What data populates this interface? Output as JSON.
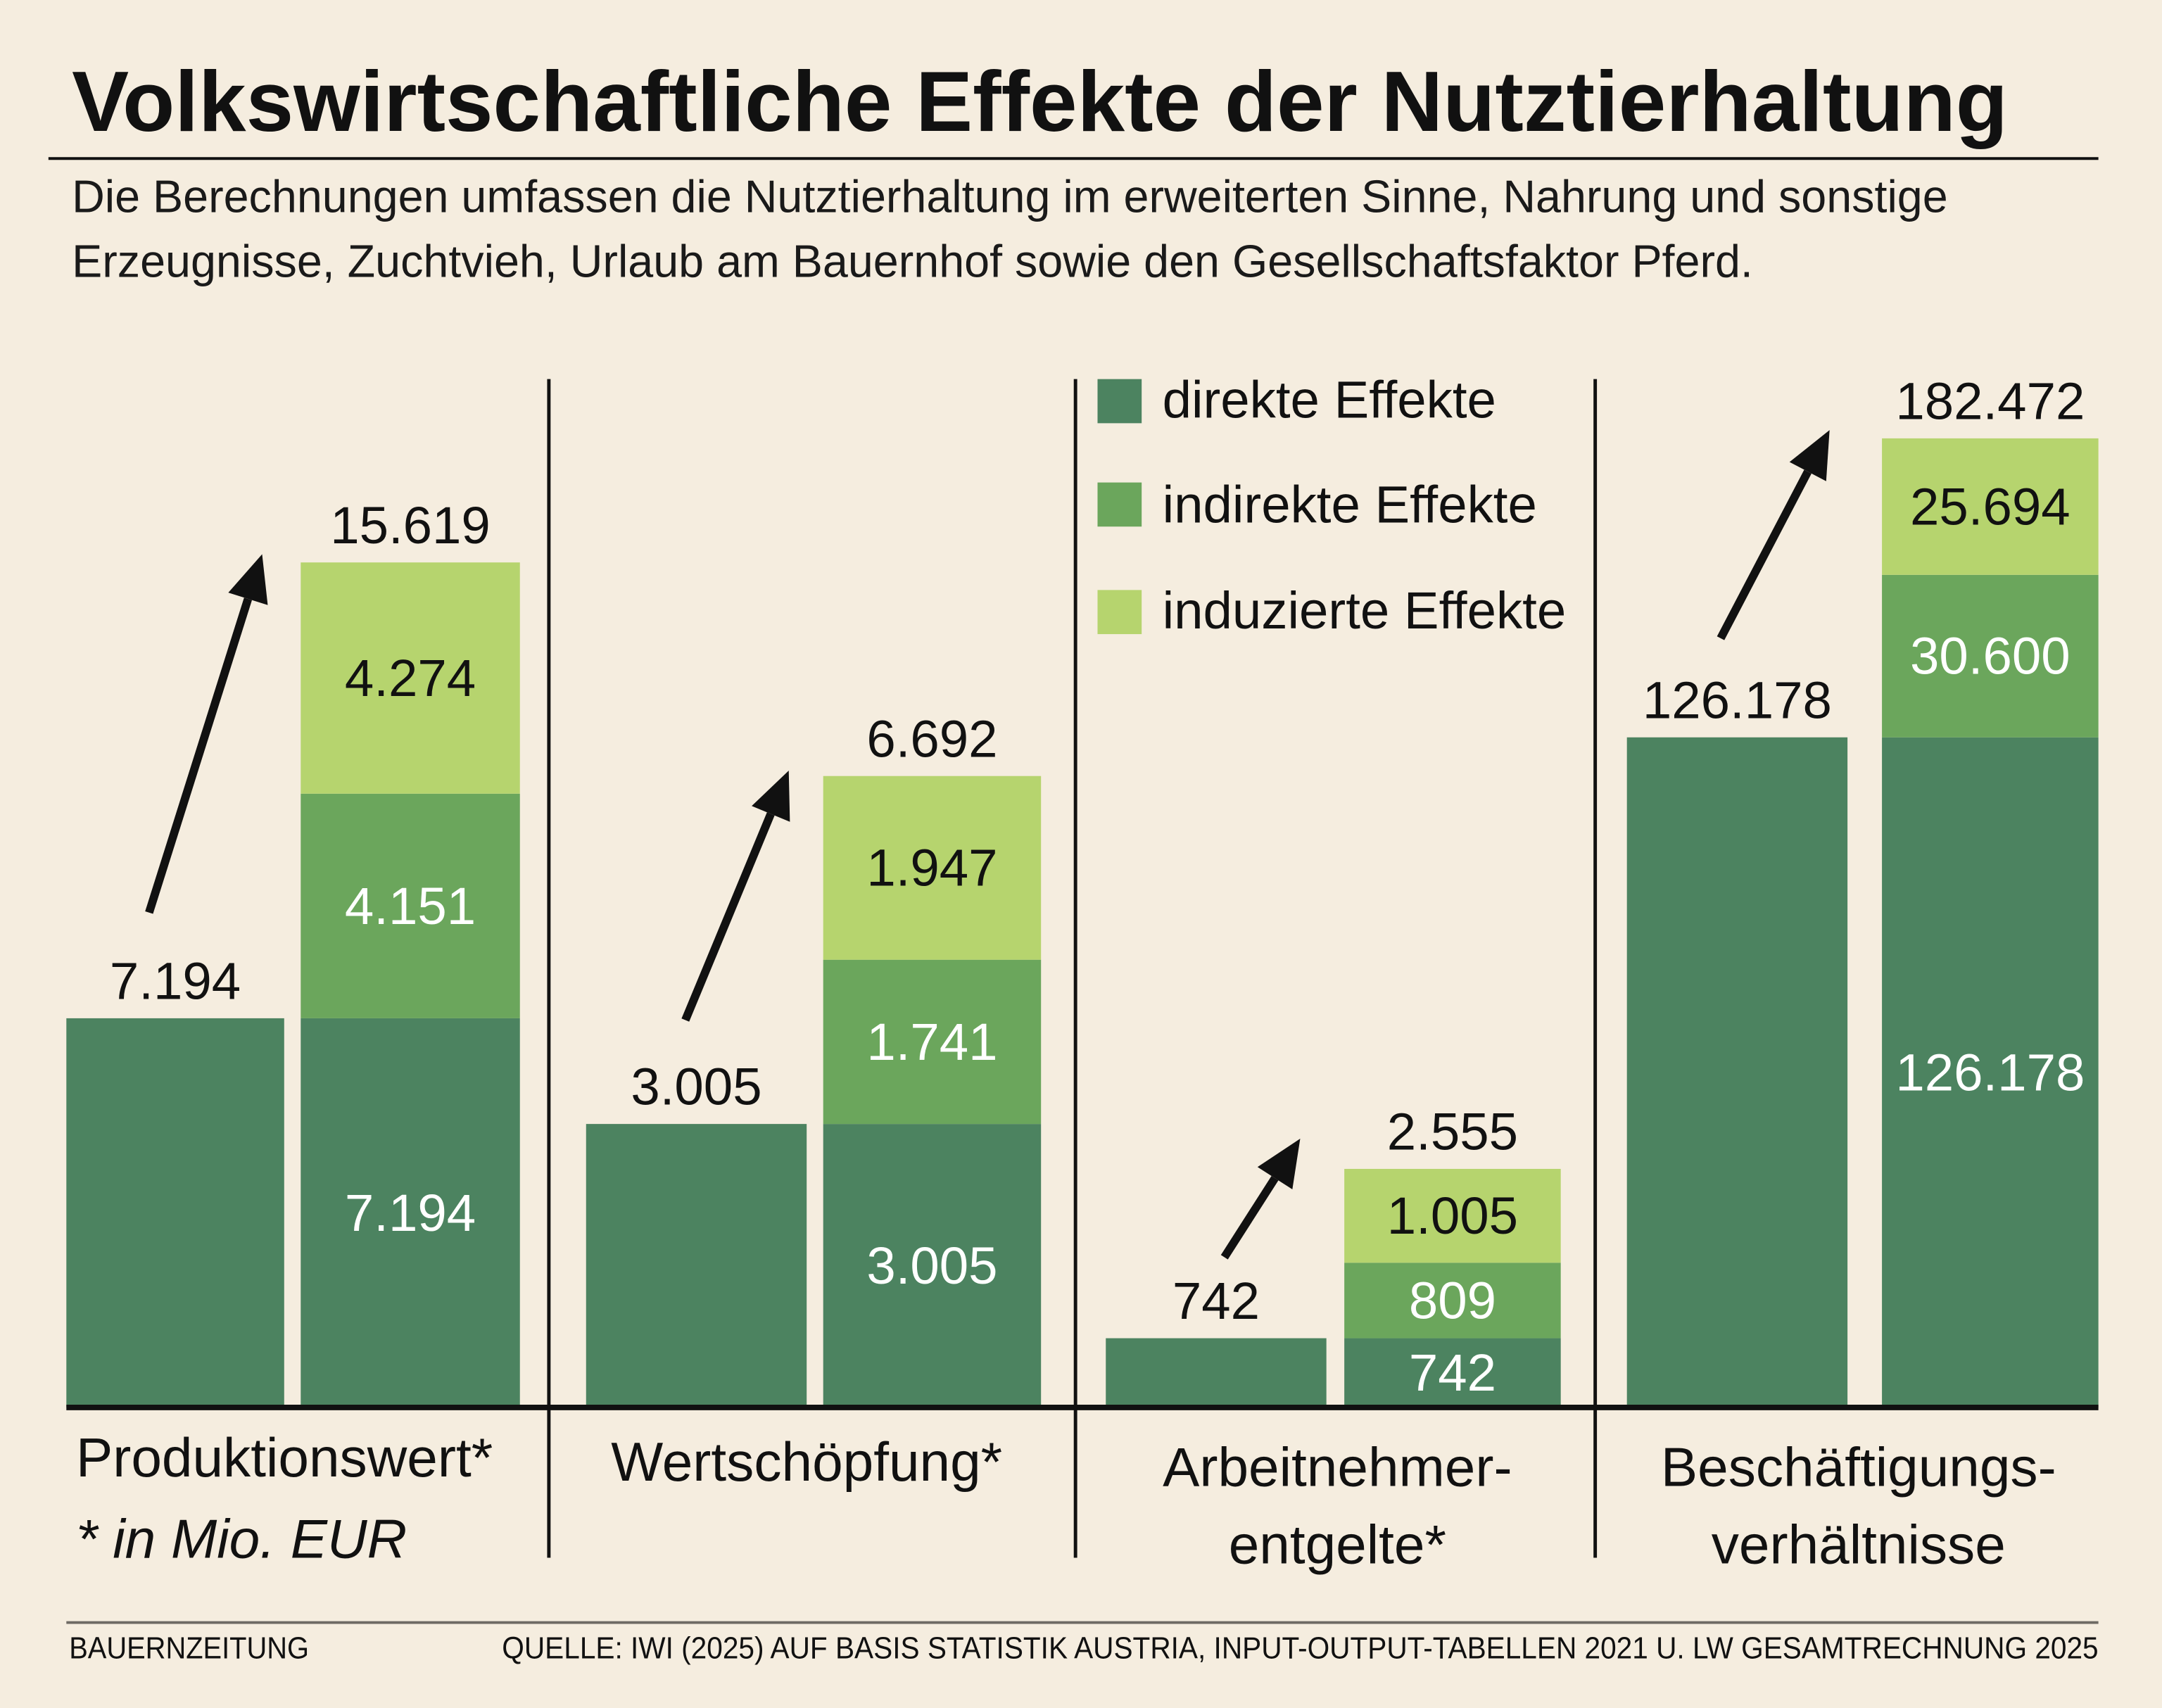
{
  "title": "Volkswirtschaftliche Effekte der Nutztierhaltung",
  "subtitle": [
    "Die Berechnungen umfassen die Nutztierhaltung im erweiterten Sinne, Nahrung und sonstige",
    "Erzeugnisse, Zuchtvieh, Urlaub am Bauernhof sowie den Gesellschaftsfaktor Pferd."
  ],
  "colors": {
    "background": "#f5eddf",
    "direkt": "#4c8360",
    "indirekt": "#6ba65c",
    "induziert": "#b6d46e"
  },
  "legend": [
    "direkte Effekte",
    "indirekte Effekte",
    "induzierte Effekte"
  ],
  "footnote": "* in Mio. EUR",
  "footer": {
    "left": "BAUERNZEITUNG",
    "right": "QUELLE: IWI (2025) AUF BASIS STATISTIK AUSTRIA, INPUT-OUTPUT-TABELLEN 2021 U. LW GESAMTRECHNUNG 2025"
  },
  "chart_data": {
    "type": "bar",
    "subtype": "paired direct vs. stacked total per category, each category on its own scale, arrow from direct to total",
    "series": [
      "direkte Effekte",
      "indirekte Effekte",
      "induzierte Effekte"
    ],
    "groups": [
      {
        "label": [
          "Produktionswert*"
        ],
        "direct": "7.194",
        "stack": [
          "7.194",
          "4.151",
          "4.274"
        ],
        "total": "15.619",
        "values": [
          7194,
          4151,
          4274
        ],
        "sum": 15619
      },
      {
        "label": [
          "Wertschöpfung*"
        ],
        "direct": "3.005",
        "stack": [
          "3.005",
          "1.741",
          "1.947"
        ],
        "total": "6.692",
        "values": [
          3005,
          1741,
          1947
        ],
        "sum": 6692
      },
      {
        "label": [
          "Arbeitnehmer-",
          "entgelte*"
        ],
        "direct": "742",
        "stack": [
          "742",
          "809",
          "1.005"
        ],
        "total": "2.555",
        "values": [
          742,
          809,
          1005
        ],
        "sum": 2555
      },
      {
        "label": [
          "Beschäftigungs-",
          "verhältnisse"
        ],
        "direct": "126.178",
        "stack": [
          "126.178",
          "30.600",
          "25.694"
        ],
        "total": "182.472",
        "values": [
          126178,
          30600,
          25694
        ],
        "sum": 182472
      }
    ]
  }
}
